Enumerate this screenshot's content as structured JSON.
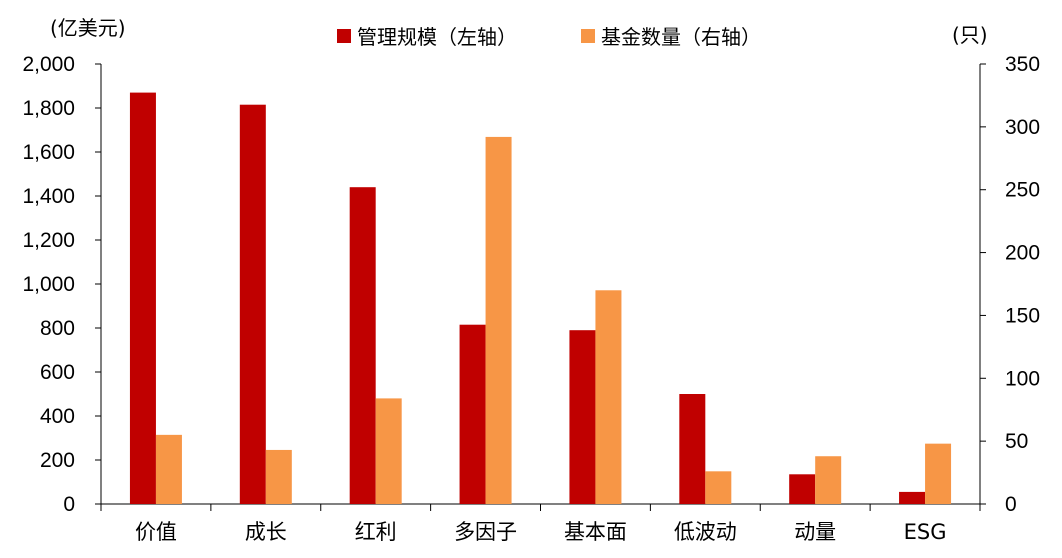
{
  "chart_data": {
    "type": "bar",
    "title": "",
    "categories": [
      "价值",
      "成长",
      "红利",
      "多因子",
      "基本面",
      "低波动",
      "动量",
      "ESG"
    ],
    "series": [
      {
        "name": "管理规模（左轴）",
        "axis": "left",
        "color": "#C00000",
        "values": [
          1870,
          1815,
          1440,
          815,
          790,
          500,
          135,
          55
        ]
      },
      {
        "name": "基金数量（右轴）",
        "axis": "right",
        "color": "#F79646",
        "values": [
          55,
          43,
          84,
          292,
          170,
          26,
          38,
          48
        ]
      }
    ],
    "left_axis": {
      "unit": "(亿美元)",
      "ylim": [
        0,
        2000
      ],
      "ticks": [
        0,
        200,
        400,
        600,
        800,
        1000,
        1200,
        1400,
        1600,
        1800,
        2000
      ],
      "tick_labels": [
        "0",
        "200",
        "400",
        "600",
        "800",
        "1,000",
        "1,200",
        "1,400",
        "1,600",
        "1,800",
        "2,000"
      ]
    },
    "right_axis": {
      "unit": "(只)",
      "ylim": [
        0,
        350
      ],
      "ticks": [
        0,
        50,
        100,
        150,
        200,
        250,
        300,
        350
      ],
      "tick_labels": [
        "0",
        "50",
        "100",
        "150",
        "200",
        "250",
        "300",
        "350"
      ]
    },
    "grid": false,
    "legend_position": "top-center"
  }
}
